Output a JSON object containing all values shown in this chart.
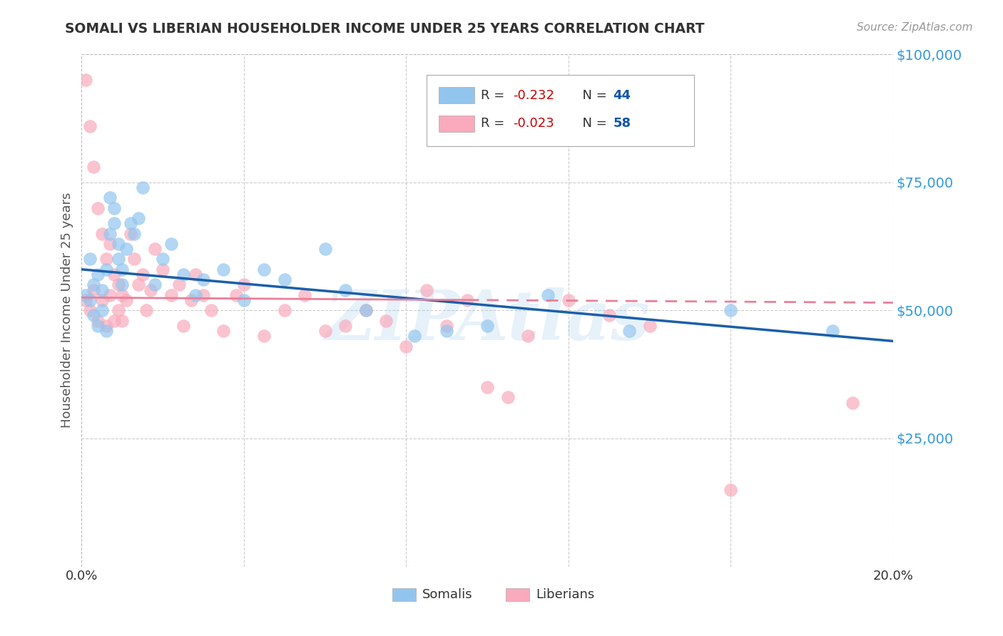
{
  "title": "SOMALI VS LIBERIAN HOUSEHOLDER INCOME UNDER 25 YEARS CORRELATION CHART",
  "source": "Source: ZipAtlas.com",
  "ylabel": "Householder Income Under 25 years",
  "xlim": [
    0.0,
    0.2
  ],
  "ylim": [
    0,
    100000
  ],
  "somali_R": -0.232,
  "somali_N": 44,
  "liberian_R": -0.023,
  "liberian_N": 58,
  "somali_color": "#92C5EE",
  "liberian_color": "#F9AABC",
  "somali_line_color": "#1B5FAA",
  "liberian_line_color": "#E8809A",
  "background_color": "#ffffff",
  "grid_color": "#cccccc",
  "watermark": "ZIPAtlas",
  "somali_intercept": 58000,
  "somali_slope": -70000,
  "liberian_intercept": 52500,
  "liberian_slope": -5000,
  "somali_x": [
    0.001,
    0.002,
    0.002,
    0.003,
    0.003,
    0.004,
    0.004,
    0.005,
    0.005,
    0.006,
    0.006,
    0.007,
    0.007,
    0.008,
    0.008,
    0.009,
    0.009,
    0.01,
    0.01,
    0.011,
    0.012,
    0.013,
    0.014,
    0.015,
    0.018,
    0.02,
    0.022,
    0.025,
    0.028,
    0.03,
    0.035,
    0.04,
    0.045,
    0.05,
    0.06,
    0.065,
    0.07,
    0.082,
    0.09,
    0.1,
    0.115,
    0.135,
    0.16,
    0.185
  ],
  "somali_y": [
    53000,
    52000,
    60000,
    55000,
    49000,
    57000,
    47000,
    54000,
    50000,
    58000,
    46000,
    65000,
    72000,
    70000,
    67000,
    63000,
    60000,
    58000,
    55000,
    62000,
    67000,
    65000,
    68000,
    74000,
    55000,
    60000,
    63000,
    57000,
    53000,
    56000,
    58000,
    52000,
    58000,
    56000,
    62000,
    54000,
    50000,
    45000,
    46000,
    47000,
    53000,
    46000,
    50000,
    46000
  ],
  "liberian_x": [
    0.001,
    0.001,
    0.002,
    0.002,
    0.003,
    0.003,
    0.004,
    0.004,
    0.005,
    0.005,
    0.006,
    0.006,
    0.007,
    0.007,
    0.008,
    0.008,
    0.009,
    0.009,
    0.01,
    0.01,
    0.011,
    0.012,
    0.013,
    0.014,
    0.015,
    0.016,
    0.017,
    0.018,
    0.02,
    0.022,
    0.024,
    0.025,
    0.027,
    0.028,
    0.03,
    0.032,
    0.035,
    0.038,
    0.04,
    0.045,
    0.05,
    0.055,
    0.06,
    0.065,
    0.07,
    0.075,
    0.08,
    0.085,
    0.09,
    0.095,
    0.1,
    0.105,
    0.11,
    0.12,
    0.13,
    0.14,
    0.16,
    0.19
  ],
  "liberian_y": [
    95000,
    52000,
    86000,
    50000,
    78000,
    54000,
    70000,
    48000,
    65000,
    52000,
    60000,
    47000,
    63000,
    53000,
    57000,
    48000,
    55000,
    50000,
    53000,
    48000,
    52000,
    65000,
    60000,
    55000,
    57000,
    50000,
    54000,
    62000,
    58000,
    53000,
    55000,
    47000,
    52000,
    57000,
    53000,
    50000,
    46000,
    53000,
    55000,
    45000,
    50000,
    53000,
    46000,
    47000,
    50000,
    48000,
    43000,
    54000,
    47000,
    52000,
    35000,
    33000,
    45000,
    52000,
    49000,
    47000,
    15000,
    32000
  ]
}
